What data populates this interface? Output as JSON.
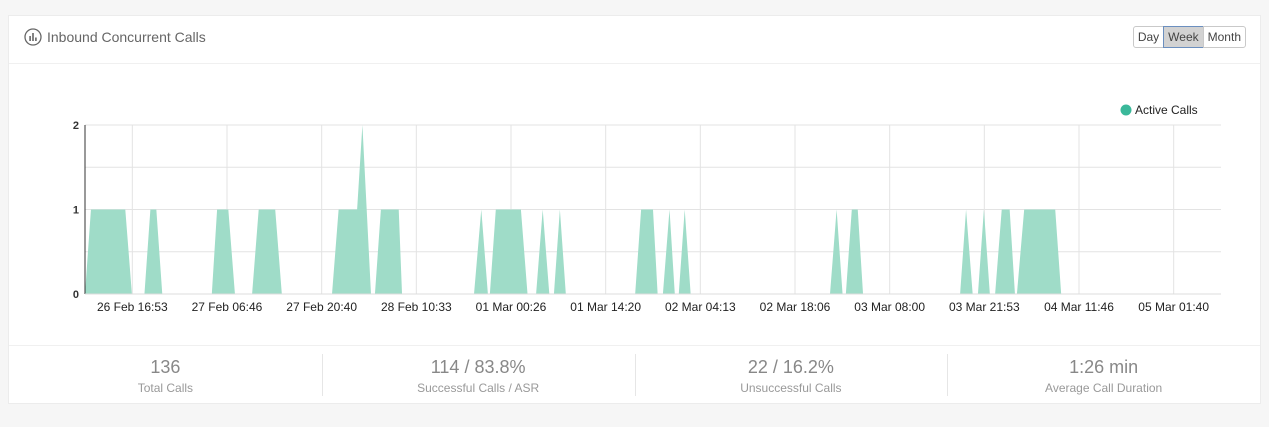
{
  "header": {
    "title": "Inbound Concurrent Calls",
    "icon": "bar-chart-icon",
    "periods": [
      {
        "label": "Day",
        "active": false
      },
      {
        "label": "Week",
        "active": true
      },
      {
        "label": "Month",
        "active": false
      }
    ]
  },
  "colors": {
    "series": "#9fdcc8",
    "legend_dot": "#3ab89a",
    "grid": "#e3e3e3"
  },
  "chart_data": {
    "type": "area",
    "x_tick_labels": [
      "26 Feb 16:53",
      "27 Feb 06:46",
      "27 Feb 20:40",
      "28 Feb 10:33",
      "01 Mar 00:26",
      "01 Mar 14:20",
      "02 Mar 04:13",
      "02 Mar 18:06",
      "03 Mar 08:00",
      "03 Mar 21:53",
      "04 Mar 11:46",
      "05 Mar 01:40"
    ],
    "y_ticks": [
      0,
      1,
      2
    ],
    "ylim": [
      0,
      2
    ],
    "xlim": [
      0,
      172
    ],
    "grid": true,
    "legend": "top-right",
    "series": [
      {
        "name": "Active Calls",
        "points": [
          [
            0,
            0
          ],
          [
            0.9,
            1
          ],
          [
            6.1,
            1
          ],
          [
            7.1,
            0
          ],
          [
            9.0,
            0
          ],
          [
            9.9,
            1
          ],
          [
            10.8,
            1
          ],
          [
            11.7,
            0
          ],
          [
            19.2,
            0
          ],
          [
            20.0,
            1
          ],
          [
            21.7,
            1
          ],
          [
            22.7,
            0
          ],
          [
            25.3,
            0
          ],
          [
            26.3,
            1
          ],
          [
            28.8,
            1
          ],
          [
            29.8,
            0
          ],
          [
            37.4,
            0
          ],
          [
            38.4,
            1
          ],
          [
            41.2,
            1
          ],
          [
            42.0,
            2
          ],
          [
            43.3,
            0
          ],
          [
            43.9,
            0
          ],
          [
            44.8,
            1
          ],
          [
            47.5,
            1
          ],
          [
            48.0,
            0
          ],
          [
            58.9,
            0
          ],
          [
            60.0,
            1
          ],
          [
            61.0,
            0
          ],
          [
            61.3,
            0
          ],
          [
            62.2,
            1
          ],
          [
            66.0,
            1
          ],
          [
            67.0,
            0
          ],
          [
            68.3,
            0
          ],
          [
            69.3,
            1
          ],
          [
            70.3,
            0
          ],
          [
            71.0,
            0
          ],
          [
            71.9,
            1
          ],
          [
            72.8,
            0
          ],
          [
            83.3,
            0
          ],
          [
            84.2,
            1
          ],
          [
            86.0,
            1
          ],
          [
            86.7,
            0
          ],
          [
            87.5,
            0
          ],
          [
            88.5,
            1
          ],
          [
            89.3,
            0
          ],
          [
            89.9,
            0
          ],
          [
            90.8,
            1
          ],
          [
            91.7,
            0
          ],
          [
            112.8,
            0
          ],
          [
            113.8,
            1
          ],
          [
            114.7,
            0
          ],
          [
            115.2,
            0
          ],
          [
            116.1,
            1
          ],
          [
            117.0,
            1
          ],
          [
            117.8,
            0
          ],
          [
            132.5,
            0
          ],
          [
            133.4,
            1
          ],
          [
            134.4,
            0
          ],
          [
            135.2,
            0
          ],
          [
            136.1,
            1
          ],
          [
            137.0,
            0
          ],
          [
            137.8,
            0
          ],
          [
            138.8,
            1
          ],
          [
            140.0,
            1
          ],
          [
            140.8,
            0
          ],
          [
            141.1,
            0
          ],
          [
            142.2,
            1
          ],
          [
            146.9,
            1
          ],
          [
            147.8,
            0
          ]
        ]
      }
    ]
  },
  "stats": [
    {
      "value": "136",
      "label": "Total Calls"
    },
    {
      "value": "114 / 83.8%",
      "label": "Successful Calls / ASR"
    },
    {
      "value": "22 / 16.2%",
      "label": "Unsuccessful Calls"
    },
    {
      "value": "1:26 min",
      "label": "Average Call Duration"
    }
  ]
}
